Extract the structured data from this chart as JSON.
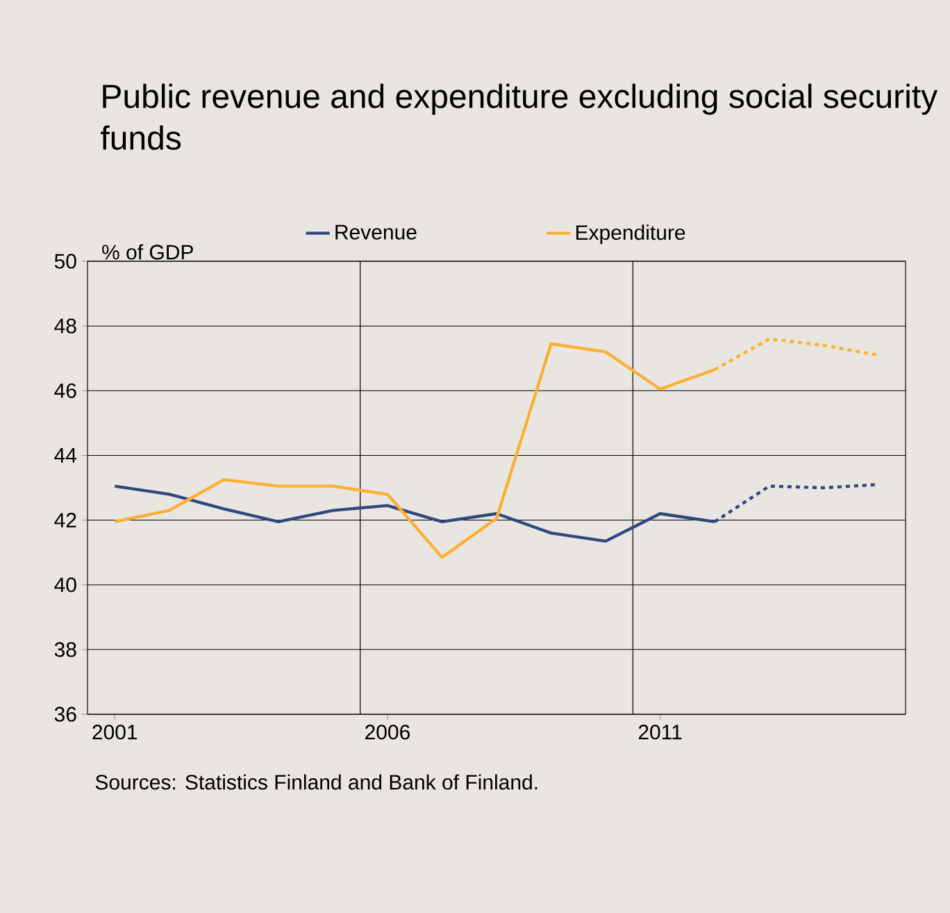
{
  "chart_data": {
    "type": "line",
    "title": "Public revenue and expenditure excluding social security funds",
    "ylabel": "% of GDP",
    "annotations": [
      "Sources: Statistics Finland and Bank of Finland."
    ],
    "series": [
      {
        "name": "Revenue",
        "color": "#2e4a7d",
        "line_style": "solid",
        "x": [
          2001,
          2002,
          2003,
          2004,
          2005,
          2006,
          2007,
          2008,
          2009,
          2010,
          2011,
          2012
        ],
        "values": [
          43.05,
          42.8,
          42.35,
          41.95,
          42.3,
          42.45,
          41.95,
          42.2,
          41.6,
          41.35,
          42.2,
          41.95
        ]
      },
      {
        "color": "#2e4a7d",
        "line_style": "dashed",
        "x": [
          2012,
          2013,
          2014,
          2015
        ],
        "values": [
          41.95,
          43.05,
          43.0,
          43.1
        ]
      },
      {
        "name": "Expenditure",
        "color": "#fbb034",
        "line_style": "solid",
        "x": [
          2001,
          2002,
          2003,
          2004,
          2005,
          2006,
          2007,
          2008,
          2009,
          2010,
          2011,
          2012
        ],
        "values": [
          41.95,
          42.3,
          43.25,
          43.05,
          43.05,
          42.8,
          40.85,
          42.05,
          47.45,
          47.2,
          46.05,
          46.65
        ]
      },
      {
        "color": "#fbb034",
        "line_style": "dashed",
        "x": [
          2012,
          2013,
          2014,
          2015
        ],
        "values": [
          46.65,
          47.6,
          47.4,
          47.1
        ]
      }
    ],
    "xlim": [
      2000.5,
      2015.5
    ],
    "xticks": [
      2001,
      2006,
      2011
    ],
    "ylim": [
      36,
      50
    ],
    "yticks": [
      36,
      38,
      40,
      42,
      44,
      46,
      48,
      50
    ],
    "ref_lines": [
      {
        "axis": "x",
        "value": 2005.5,
        "color": "#000000"
      },
      {
        "axis": "x",
        "value": 2010.5,
        "color": "#000000"
      }
    ],
    "grid": "y",
    "legend": "top"
  }
}
